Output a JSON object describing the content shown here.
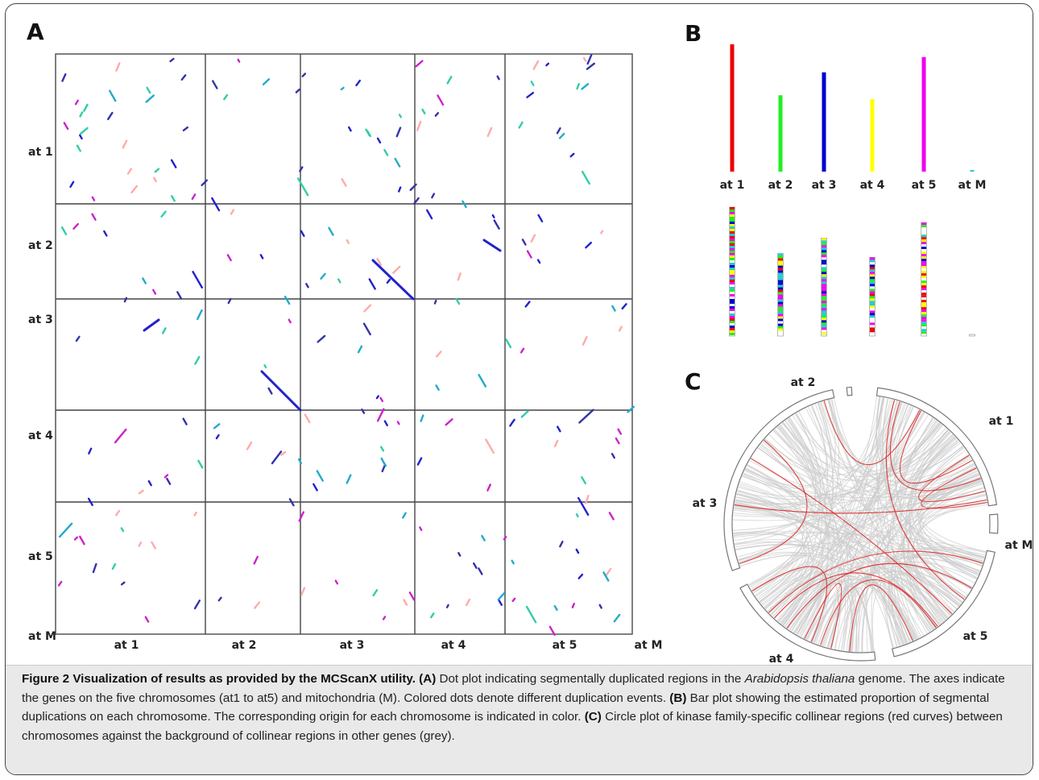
{
  "chart_data": [
    {
      "panel": "A",
      "type": "scatter",
      "description_kind": "dot plot",
      "x_tick_labels": [
        "at 1",
        "at 2",
        "at 3",
        "at 4",
        "at 5",
        "at M"
      ],
      "y_tick_labels": [
        "at 1",
        "at 2",
        "at 3",
        "at 4",
        "at 5",
        "at M"
      ],
      "grid": true,
      "colors": [
        "#2222cc",
        "#cc22cc",
        "#22aacc",
        "#33ccaa",
        "#ffaaaa",
        "#3333aa"
      ]
    },
    {
      "panel": "B",
      "type": "bar",
      "categories": [
        "at 1",
        "at 2",
        "at 3",
        "at 4",
        "at 5",
        "at M"
      ],
      "values": [
        1.0,
        0.6,
        0.78,
        0.57,
        0.9,
        0.01
      ],
      "colors": [
        "#ee0000",
        "#22ee22",
        "#0000cc",
        "#ffff00",
        "#ee00ee",
        "#22cccc"
      ],
      "origin_bar_values": [
        1.0,
        0.64,
        0.76,
        0.61,
        0.88,
        0.01
      ]
    },
    {
      "panel": "C",
      "type": "circle",
      "description_kind": "circos plot",
      "segments": [
        "at 1",
        "at M",
        "at 5",
        "at 4",
        "at 3",
        "at 2"
      ],
      "highlight_color": "#dd2222",
      "background_color": "#cccccc"
    }
  ],
  "panel_labels": {
    "a": "A",
    "b": "B",
    "c": "C"
  },
  "caption": {
    "figure_label": "Figure 2",
    "title": "Visualization of results as provided by the MCScanX utility.",
    "a_label": "(A)",
    "a_text_1": "Dot plot indicating segmentally duplicated regions in the",
    "a_species": "Arabidopsis thaliana",
    "a_text_2": "genome. The axes indicate the genes on the five chromosomes (at1 to at5) and mitochondria (M). Colored dots denote different duplication events.",
    "b_label": "(B)",
    "b_text": "Bar plot showing the estimated proportion of segmental duplications on each chromosome. The corresponding origin for each chromosome is indicated in color.",
    "c_label": "(C)",
    "c_text": "Circle plot of kinase family-specific collinear regions (red curves) between chromosomes against the background of collinear regions in other genes (grey)."
  }
}
